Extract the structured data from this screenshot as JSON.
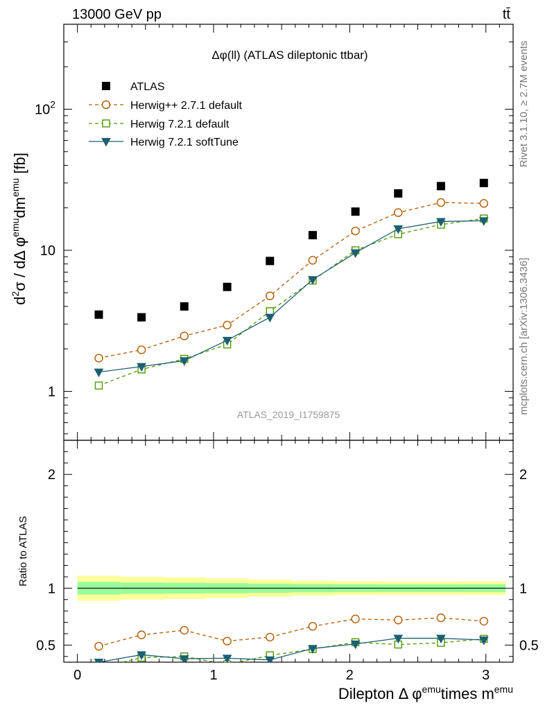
{
  "header": {
    "left": "13000 GeV pp",
    "right": "tt̄"
  },
  "side_text": {
    "rivet": "Rivet 3.1.10, ≥ 2.7M events",
    "mcplots": "mcplots.cern.ch [arXiv:1306.3436]"
  },
  "chart_data": {
    "type": "line",
    "title": "Δφ(ll) (ATLAS dileptonic ttbar)",
    "watermark": "ATLAS_2019_I1759875",
    "xlabel": {
      "base": "Dilepton Δ φ",
      "sup1": "emu",
      "mid": "times m",
      "sup2": "emu"
    },
    "ylabel": {
      "parts": [
        "d",
        "2",
        "σ / dΔ φ",
        "emu",
        "dm",
        "emu",
        " [fb]"
      ]
    },
    "ratio_ylabel": "Ratio to ATLAS",
    "xlim": [
      -0.1,
      3.2
    ],
    "main_ylim": [
      0.45,
      400
    ],
    "main_yscale": "log",
    "main_yticks": [
      {
        "v": 1,
        "label": "1"
      },
      {
        "v": 10,
        "label": "10"
      },
      {
        "v": 100,
        "label": "10",
        "sup": "2"
      }
    ],
    "ratio_ylim": [
      0.35,
      2.3
    ],
    "ratio_yticks": [
      {
        "v": 0.5,
        "label": "0.5"
      },
      {
        "v": 1,
        "label": "1"
      },
      {
        "v": 2,
        "label": "2"
      }
    ],
    "xticks": [
      {
        "v": 0,
        "label": "0"
      },
      {
        "v": 1,
        "label": "1"
      },
      {
        "v": 2,
        "label": "2"
      },
      {
        "v": 3,
        "label": "3"
      }
    ],
    "x": [
      0.157,
      0.471,
      0.785,
      1.1,
      1.414,
      1.728,
      2.042,
      2.356,
      2.67,
      2.985
    ],
    "band_edges": [
      0,
      0.314,
      0.628,
      0.942,
      1.257,
      1.571,
      1.885,
      2.199,
      2.513,
      2.827,
      3.142
    ],
    "band_inner": [
      0.055,
      0.05,
      0.048,
      0.045,
      0.04,
      0.037,
      0.035,
      0.034,
      0.034,
      0.035
    ],
    "band_outer": [
      0.11,
      0.1,
      0.095,
      0.085,
      0.075,
      0.065,
      0.06,
      0.058,
      0.058,
      0.06
    ],
    "series": [
      {
        "name": "ATLAS",
        "color": "#000000",
        "marker": "square-filled",
        "dash": "none",
        "values": [
          3.5,
          3.35,
          4.0,
          5.5,
          8.4,
          12.8,
          18.8,
          25.3,
          28.5,
          30.0
        ]
      },
      {
        "name": "Herwig++ 2.7.1 default",
        "color": "#b35900",
        "marker": "circle-open",
        "dash": "5,4",
        "values": [
          1.72,
          1.97,
          2.47,
          2.95,
          4.75,
          8.5,
          13.7,
          18.5,
          21.8,
          21.5
        ],
        "ratio": [
          0.49,
          0.59,
          0.63,
          0.535,
          0.57,
          0.665,
          0.73,
          0.72,
          0.74,
          0.71
        ],
        "ratio_err": [
          0.025,
          0.025,
          0.025,
          0.02,
          0.018,
          0.012,
          0.012,
          0.01,
          0.01,
          0.01
        ]
      },
      {
        "name": "Herwig 7.2.1 default",
        "color": "#4d9900",
        "marker": "square-open",
        "dash": "5,4",
        "values": [
          1.1,
          1.43,
          1.7,
          2.15,
          3.7,
          6.1,
          10.0,
          13.0,
          15.2,
          16.8
        ],
        "ratio": [
          0.3,
          0.39,
          0.4,
          0.33,
          0.41,
          0.465,
          0.525,
          0.505,
          0.52,
          0.555
        ],
        "ratio_err": [
          0.02,
          0.02,
          0.02,
          0.02,
          0.015,
          0.012,
          0.01,
          0.01,
          0.01,
          0.01
        ]
      },
      {
        "name": "Herwig 7.2.1 softTune",
        "color": "#1c5f73",
        "marker": "triangle-down-filled",
        "dash": "none",
        "values": [
          1.37,
          1.5,
          1.65,
          2.3,
          3.35,
          6.2,
          9.6,
          14.2,
          16.0,
          16.2
        ],
        "ratio": [
          0.35,
          0.415,
          0.38,
          0.385,
          0.37,
          0.47,
          0.51,
          0.56,
          0.56,
          0.545
        ],
        "ratio_err": [
          0.02,
          0.02,
          0.02,
          0.02,
          0.015,
          0.012,
          0.01,
          0.01,
          0.01,
          0.01
        ]
      }
    ],
    "band_colors": {
      "outer": "#ffff99",
      "inner": "#99ff99"
    }
  }
}
